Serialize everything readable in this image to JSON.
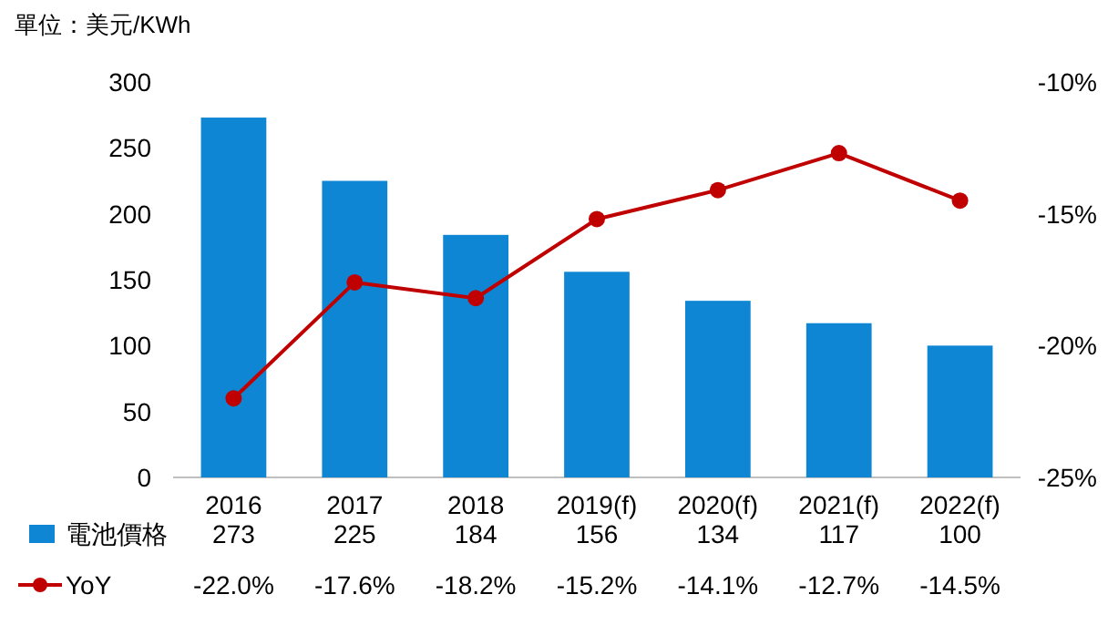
{
  "chart_data": {
    "type": "bar",
    "annotations": [
      "單位：美元/KWh"
    ],
    "categories": [
      "2016",
      "2017",
      "2018",
      "2019(f)",
      "2020(f)",
      "2021(f)",
      "2022(f)"
    ],
    "series": [
      {
        "name": "電池價格",
        "color": "#0e86d4",
        "values": [
          273,
          225,
          184,
          156,
          134,
          117,
          100
        ],
        "value_labels": [
          "273",
          "225",
          "184",
          "156",
          "134",
          "117",
          "100"
        ]
      },
      {
        "name": "YoY",
        "type": "line",
        "axis": "y2",
        "color": "#c00000",
        "marker": "circle",
        "values": [
          -22.0,
          -17.6,
          -18.2,
          -15.2,
          -14.1,
          -12.7,
          -14.5
        ],
        "value_labels": [
          "-22.0%",
          "-17.6%",
          "-18.2%",
          "-15.2%",
          "-14.1%",
          "-12.7%",
          "-14.5%"
        ]
      }
    ],
    "ylim": [
      0,
      300
    ],
    "yticks": [
      0,
      50,
      100,
      150,
      200,
      250,
      300
    ],
    "y2lim": [
      -25,
      -10
    ],
    "y2ticks": [
      {
        "value": -25,
        "label": "-25%"
      },
      {
        "value": -20,
        "label": "-20%"
      },
      {
        "value": -15,
        "label": "-15%"
      },
      {
        "value": -10,
        "label": "-10%"
      }
    ],
    "legend": "bottom"
  }
}
